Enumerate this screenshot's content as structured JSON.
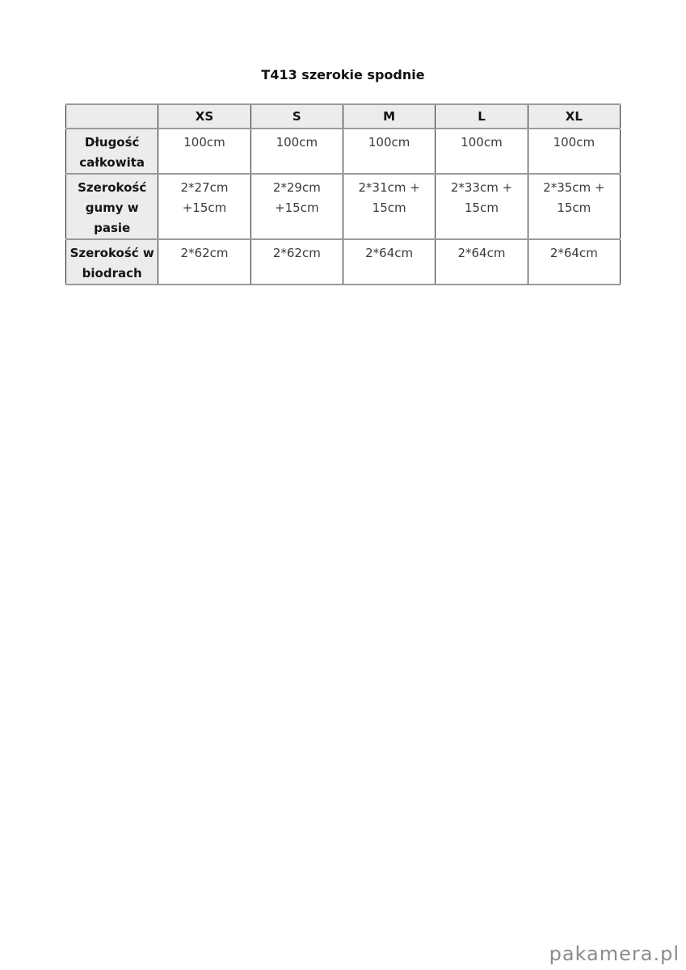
{
  "page": {
    "title": "T413 szerokie spodnie",
    "watermark": "pakamera.pl",
    "background": "#ffffff"
  },
  "size_table": {
    "corner": "",
    "columns": [
      "XS",
      "S",
      "M",
      "L",
      "XL"
    ],
    "rows": [
      {
        "label": "Długość\ncałkowita",
        "values": [
          "100cm",
          "100cm",
          "100cm",
          "100cm",
          "100cm"
        ]
      },
      {
        "label": "Szerokość\ngumy w\npasie",
        "values": [
          "2*27cm\n+15cm",
          "2*29cm\n+15cm",
          "2*31cm +\n15cm",
          "2*33cm +\n15cm",
          "2*35cm +\n15cm"
        ]
      },
      {
        "label": "Szerokość w\nbiodrach",
        "values": [
          "2*62cm",
          "2*62cm",
          "2*64cm",
          "2*64cm",
          "2*64cm"
        ]
      }
    ],
    "colors": {
      "header_bg": "#ececec",
      "horizontal_border": "#9a9a9a",
      "vertical_border": "#1f1f1f",
      "label_text": "#151515",
      "value_text": "#3a3a3a",
      "watermark_text": "#8c8c8c"
    }
  }
}
